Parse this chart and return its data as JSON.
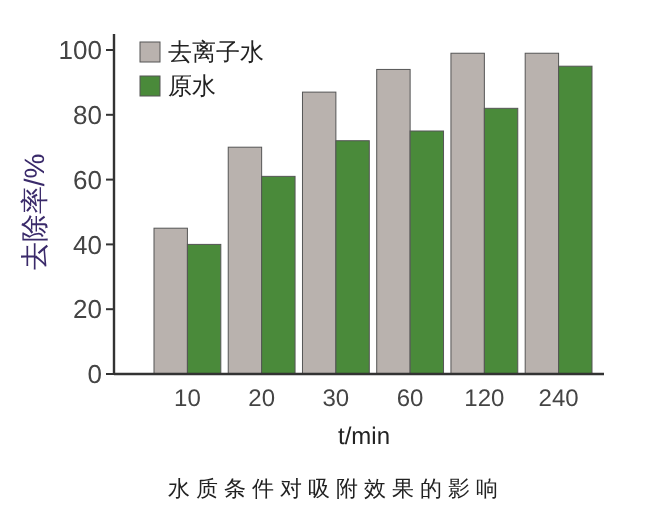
{
  "chart_data": {
    "type": "bar",
    "title": "水质条件对吸附效果的影响",
    "xlabel": "t/min",
    "ylabel": "去除率/%",
    "categories": [
      "10",
      "20",
      "30",
      "60",
      "120",
      "240"
    ],
    "series": [
      {
        "name": "去离子水",
        "color": "#b9b2ae",
        "values": [
          45,
          70,
          87,
          94,
          99,
          99
        ]
      },
      {
        "name": "原水",
        "color": "#4a8a3a",
        "values": [
          40,
          61,
          72,
          75,
          82,
          95
        ]
      }
    ],
    "ylim": [
      0,
      100
    ],
    "yticks": [
      0,
      20,
      40,
      60,
      80,
      100
    ],
    "grid": false,
    "legend": "top left"
  }
}
